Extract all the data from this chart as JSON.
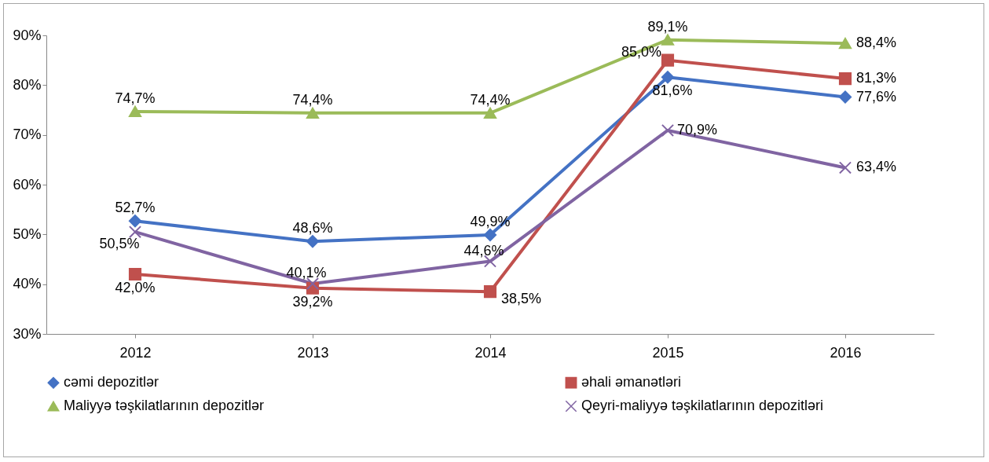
{
  "chart_data": {
    "type": "line",
    "categories": [
      "2012",
      "2013",
      "2014",
      "2015",
      "2016"
    ],
    "ylim": [
      30,
      90
    ],
    "yticks": [
      {
        "value": 30,
        "label": "30%"
      },
      {
        "value": 40,
        "label": "40%"
      },
      {
        "value": 50,
        "label": "50%"
      },
      {
        "value": 60,
        "label": "60%"
      },
      {
        "value": 70,
        "label": "70%"
      },
      {
        "value": 80,
        "label": "80%"
      },
      {
        "value": 90,
        "label": "90%"
      }
    ],
    "grid": false,
    "legend": "bottom",
    "series": [
      {
        "name": "cəmi depozitlər",
        "color": "#4472c4",
        "marker": "diamond",
        "values": [
          52.7,
          48.6,
          49.9,
          81.6,
          77.6
        ],
        "value_labels": [
          "52,7%",
          "48,6%",
          "49,9%",
          "81,6%",
          "77,6%"
        ]
      },
      {
        "name": "əhali əmanətləri",
        "color": "#c0504d",
        "marker": "square",
        "values": [
          42.0,
          39.2,
          38.5,
          85.0,
          81.3
        ],
        "value_labels": [
          "42,0%",
          "39,2%",
          "38,5%",
          "85,0%",
          "81,3%"
        ]
      },
      {
        "name": "Maliyyə təşkilatlarının depozitlər",
        "color": "#9bbb59",
        "marker": "triangle",
        "values": [
          74.7,
          74.4,
          74.4,
          89.1,
          88.4
        ],
        "value_labels": [
          "74,7%",
          "74,4%",
          "74,4%",
          "89,1%",
          "88,4%"
        ]
      },
      {
        "name": "Qeyri-maliyyə təşkilatlarının depozitləri",
        "color": "#8064a2",
        "marker": "cross",
        "values": [
          50.5,
          40.1,
          44.6,
          70.9,
          63.4
        ],
        "value_labels": [
          "50,5%",
          "40,1%",
          "44,6%",
          "70,9%",
          "63,4%"
        ]
      }
    ]
  }
}
